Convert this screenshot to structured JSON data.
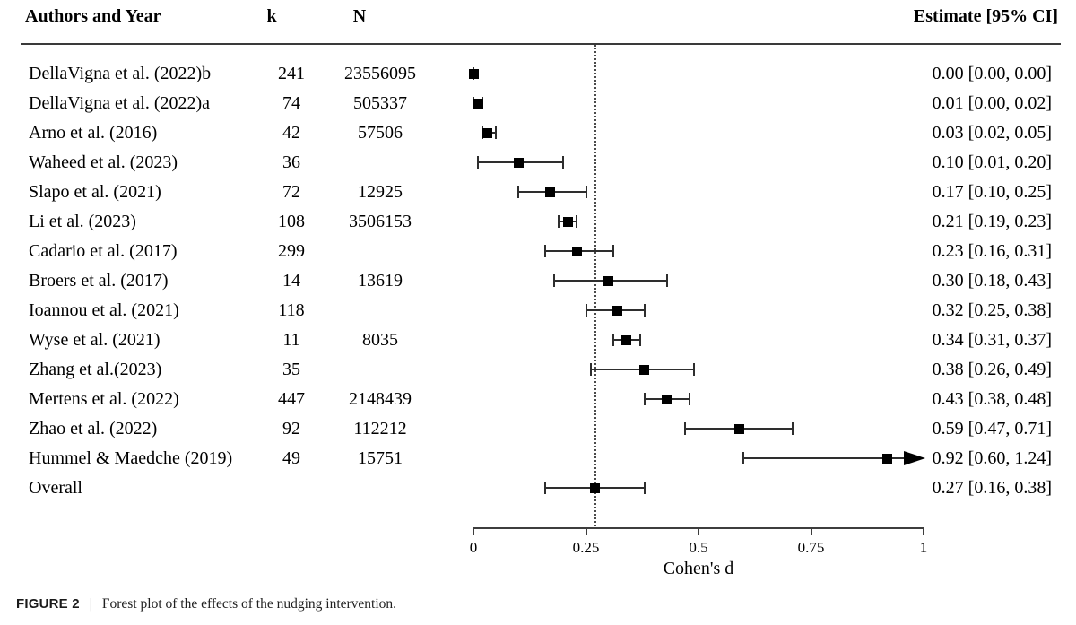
{
  "header": {
    "authors_label": "Authors and Year",
    "k_label": "k",
    "n_label": "N",
    "estimate_label": "Estimate [95% CI]"
  },
  "chart_data": {
    "type": "forest",
    "xlabel": "Cohen's d",
    "xlim": [
      0,
      1
    ],
    "x_tick_values": [
      0,
      0.25,
      0.5,
      0.75,
      1
    ],
    "x_tick_labels": [
      "0",
      "0.25",
      "0.5",
      "0.75",
      "1"
    ],
    "reference_line": 0.27,
    "reference_line_style": "dotted",
    "rows": [
      {
        "author": "DellaVigna et al. (2022)b",
        "k": "241",
        "n": "23556095",
        "estimate": 0.0,
        "ci_low": 0.0,
        "ci_high": 0.0,
        "estimate_label": "0.00 [0.00, 0.00]"
      },
      {
        "author": "DellaVigna et al. (2022)a",
        "k": "74",
        "n": "505337",
        "estimate": 0.01,
        "ci_low": 0.0,
        "ci_high": 0.02,
        "estimate_label": "0.01 [0.00, 0.02]"
      },
      {
        "author": "Arno et al. (2016)",
        "k": "42",
        "n": "57506",
        "estimate": 0.03,
        "ci_low": 0.02,
        "ci_high": 0.05,
        "estimate_label": "0.03 [0.02, 0.05]"
      },
      {
        "author": "Waheed et al. (2023)",
        "k": "36",
        "n": "",
        "estimate": 0.1,
        "ci_low": 0.01,
        "ci_high": 0.2,
        "estimate_label": "0.10 [0.01, 0.20]"
      },
      {
        "author": "Slapo et al. (2021)",
        "k": "72",
        "n": "12925",
        "estimate": 0.17,
        "ci_low": 0.1,
        "ci_high": 0.25,
        "estimate_label": "0.17 [0.10, 0.25]"
      },
      {
        "author": "Li et al. (2023)",
        "k": "108",
        "n": "3506153",
        "estimate": 0.21,
        "ci_low": 0.19,
        "ci_high": 0.23,
        "estimate_label": "0.21 [0.19, 0.23]"
      },
      {
        "author": "Cadario et al. (2017)",
        "k": "299",
        "n": "",
        "estimate": 0.23,
        "ci_low": 0.16,
        "ci_high": 0.31,
        "estimate_label": "0.23 [0.16, 0.31]"
      },
      {
        "author": "Broers et al. (2017)",
        "k": "14",
        "n": "13619",
        "estimate": 0.3,
        "ci_low": 0.18,
        "ci_high": 0.43,
        "estimate_label": "0.30 [0.18, 0.43]"
      },
      {
        "author": "Ioannou et al. (2021)",
        "k": "118",
        "n": "",
        "estimate": 0.32,
        "ci_low": 0.25,
        "ci_high": 0.38,
        "estimate_label": "0.32 [0.25, 0.38]"
      },
      {
        "author": "Wyse et al. (2021)",
        "k": "11",
        "n": "8035",
        "estimate": 0.34,
        "ci_low": 0.31,
        "ci_high": 0.37,
        "estimate_label": "0.34 [0.31, 0.37]"
      },
      {
        "author": "Zhang et al.(2023)",
        "k": "35",
        "n": "",
        "estimate": 0.38,
        "ci_low": 0.26,
        "ci_high": 0.49,
        "estimate_label": "0.38 [0.26, 0.49]"
      },
      {
        "author": "Mertens et al. (2022)",
        "k": "447",
        "n": "2148439",
        "estimate": 0.43,
        "ci_low": 0.38,
        "ci_high": 0.48,
        "estimate_label": "0.43 [0.38, 0.48]"
      },
      {
        "author": "Zhao et al. (2022)",
        "k": "92",
        "n": "112212",
        "estimate": 0.59,
        "ci_low": 0.47,
        "ci_high": 0.71,
        "estimate_label": "0.59 [0.47, 0.71]"
      },
      {
        "author": "Hummel & Maedche (2019)",
        "k": "49",
        "n": "15751",
        "estimate": 0.92,
        "ci_low": 0.6,
        "ci_high": 1.24,
        "estimate_label": "0.92 [0.60, 1.24]",
        "arrow_right": true
      },
      {
        "author": "Overall",
        "k": "",
        "n": "",
        "estimate": 0.27,
        "ci_low": 0.16,
        "ci_high": 0.38,
        "estimate_label": "0.27 [0.16, 0.38]"
      }
    ]
  },
  "caption": {
    "tag": "FIGURE 2",
    "separator": "|",
    "text": "Forest plot of the effects of the nudging intervention."
  },
  "colors": {
    "marker": "#000000",
    "whisker": "#2e2e2e",
    "axis": "#3d3d3d",
    "reference_line": "#4a4a4a",
    "text": "#000000",
    "caption_separator": "#8a8a8a"
  }
}
